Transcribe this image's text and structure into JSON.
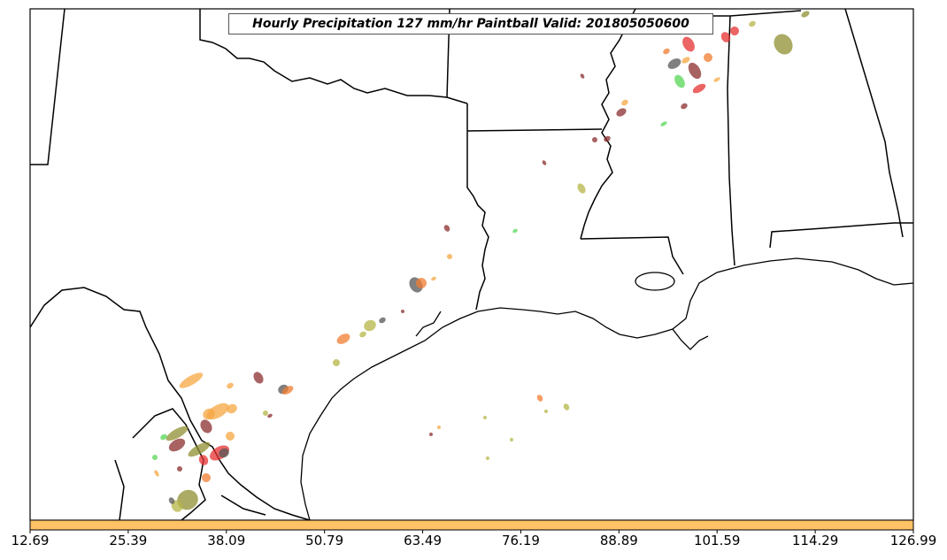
{
  "title": "Hourly Precipitation 127 mm/hr Paintball Valid: 201805050600",
  "colorbar": {
    "color": "#FFC266",
    "ticks": [
      "12.69",
      "25.39",
      "38.09",
      "50.79",
      "63.49",
      "76.19",
      "88.89",
      "101.59",
      "114.29",
      "126.99"
    ]
  },
  "paintball_colors": {
    "orange": "#F5A742",
    "dark_orange": "#F07C30",
    "olive": "#8F8F32",
    "yellow_green": "#B5B545",
    "green": "#55D555",
    "dark_red": "#8B2E2E",
    "red": "#E53030",
    "gray": "#555555"
  }
}
